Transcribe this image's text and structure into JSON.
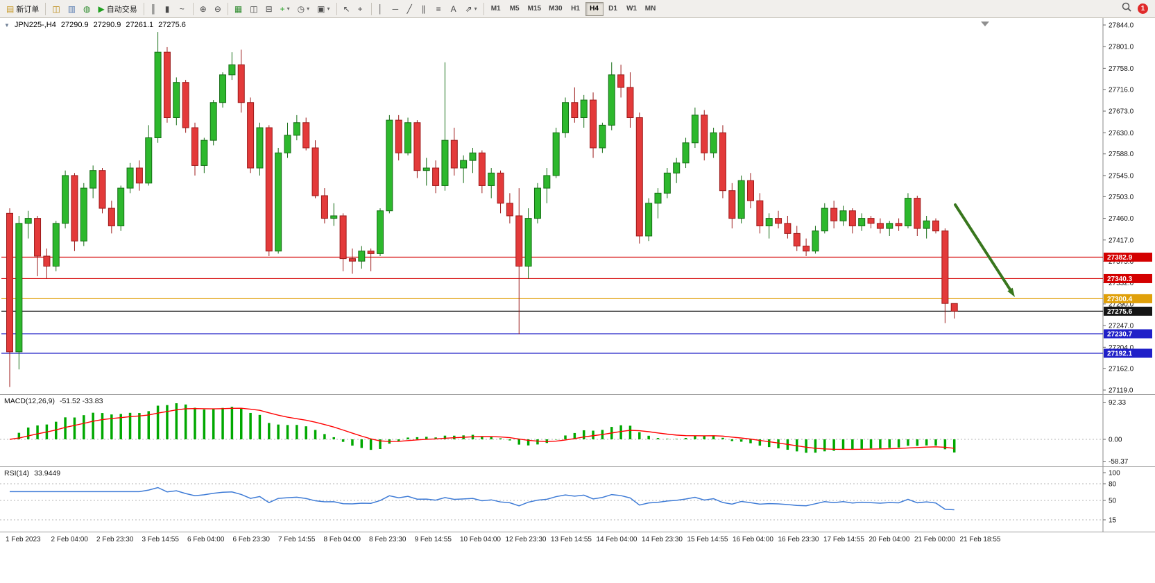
{
  "toolbar": {
    "badge_count": "1",
    "caret_glyph": "▾",
    "active_timeframe": "H4",
    "timeframes": [
      "M1",
      "M5",
      "M15",
      "M30",
      "H1",
      "H4",
      "D1",
      "W1",
      "MN"
    ],
    "items": [
      {
        "name": "new-order-button",
        "label": "新订单",
        "glyph": "▤",
        "icon": "new-order-icon",
        "color": "#c89b2a"
      },
      {
        "sep": true
      },
      {
        "name": "new-chart-button",
        "glyph": "◫",
        "icon": "new-chart-icon",
        "color": "#b8860b"
      },
      {
        "name": "profiles-button",
        "glyph": "▥",
        "icon": "profiles-icon",
        "color": "#5b7db1"
      },
      {
        "name": "market-watch-button",
        "glyph": "◍",
        "icon": "market-watch-icon",
        "color": "#2e8b2e"
      },
      {
        "name": "autotrade-button",
        "label": "自动交易",
        "glyph": "▶",
        "icon": "autotrade-play-icon",
        "color": "#1fa01f"
      },
      {
        "sep": true
      },
      {
        "name": "bar-chart-button",
        "glyph": "║",
        "icon": "bar-chart-icon"
      },
      {
        "name": "candlestick-button",
        "glyph": "▮",
        "icon": "candlestick-icon"
      },
      {
        "name": "line-chart-button",
        "glyph": "~",
        "icon": "line-chart-icon"
      },
      {
        "sep": true
      },
      {
        "name": "zoom-in-button",
        "glyph": "⊕",
        "icon": "zoom-in-icon"
      },
      {
        "name": "zoom-out-button",
        "glyph": "⊖",
        "icon": "zoom-out-icon"
      },
      {
        "sep": true
      },
      {
        "name": "tile-windows-button",
        "glyph": "▦",
        "icon": "tile-windows-icon",
        "color": "#2e8b2e"
      },
      {
        "name": "cascade-windows-button",
        "glyph": "◫",
        "icon": "cascade-windows-icon"
      },
      {
        "name": "arrange-windows-button",
        "glyph": "⊟",
        "icon": "arrange-windows-icon"
      },
      {
        "name": "indicators-button",
        "glyph": "+",
        "icon": "add-indicator-icon",
        "color": "#1fa01f",
        "caret": true
      },
      {
        "name": "periods-button",
        "glyph": "◷",
        "icon": "periods-clock-icon",
        "caret": true
      },
      {
        "name": "templates-button",
        "glyph": "▣",
        "icon": "template-icon",
        "caret": true
      },
      {
        "sep": true
      },
      {
        "name": "cursor-button",
        "glyph": "↖",
        "icon": "cursor-icon"
      },
      {
        "name": "crosshair-button",
        "glyph": "+",
        "icon": "crosshair-icon"
      },
      {
        "sep": true
      },
      {
        "name": "vertical-line-button",
        "glyph": "│",
        "icon": "vertical-line-icon"
      },
      {
        "name": "horizontal-line-button",
        "glyph": "─",
        "icon": "horizontal-line-icon"
      },
      {
        "name": "trendline-button",
        "glyph": "╱",
        "icon": "trendline-icon"
      },
      {
        "name": "channel-button",
        "glyph": "∥",
        "icon": "channel-icon"
      },
      {
        "name": "fibonacci-button",
        "glyph": "≡",
        "icon": "fibonacci-icon"
      },
      {
        "name": "text-tool-button",
        "glyph": "A",
        "icon": "text-tool-icon"
      },
      {
        "name": "arrows-tool-button",
        "glyph": "⇗",
        "icon": "arrows-tool-icon",
        "caret": true
      },
      {
        "sep": true
      }
    ]
  },
  "chart": {
    "header": {
      "arrow_glyph": "▼",
      "symbol": "JPN225-,H4",
      "open": "27290.9",
      "high": "27290.9",
      "low": "27261.1",
      "close": "27275.6"
    },
    "bull_color": "#2db82d",
    "bear_color": "#e33a3a",
    "bull_border": "#156d15",
    "bear_border": "#9c1a1a",
    "arrow_color": "#38761d",
    "price_axis": [
      "27844.0",
      "27801.0",
      "27758.0",
      "27716.0",
      "27673.0",
      "27630.0",
      "27588.0",
      "27545.0",
      "27503.0",
      "27460.0",
      "27417.0",
      "27375.0",
      "27332.0",
      "27290.0",
      "27247.0",
      "27204.0",
      "27162.0",
      "27119.0"
    ],
    "time_axis": [
      "1 Feb 2023",
      "2 Feb 04:00",
      "2 Feb 23:30",
      "3 Feb 14:55",
      "6 Feb 04:00",
      "6 Feb 23:30",
      "7 Feb 14:55",
      "8 Feb 04:00",
      "8 Feb 23:30",
      "9 Feb 14:55",
      "10 Feb 04:00",
      "12 Feb 23:30",
      "13 Feb 14:55",
      "14 Feb 04:00",
      "14 Feb 23:30",
      "15 Feb 14:55",
      "16 Feb 04:00",
      "16 Feb 23:30",
      "17 Feb 14:55",
      "20 Feb 04:00",
      "21 Feb 00:00",
      "21 Feb 18:55"
    ],
    "levels": [
      {
        "name": "resistance-line-upper",
        "price": 27382.9,
        "label": "27382.9",
        "color": "#d40000"
      },
      {
        "name": "resistance-line-lower",
        "price": 27340.3,
        "label": "27340.3",
        "color": "#d40000"
      },
      {
        "name": "pivot-line-orange",
        "price": 27300.4,
        "label": "27300.4",
        "color": "#e0a00a"
      },
      {
        "name": "current-price-line",
        "price": 27275.6,
        "label": "27275.6",
        "color": "#151515"
      },
      {
        "name": "support-line-upper",
        "price": 27230.7,
        "label": "27230.7",
        "color": "#2020c8"
      },
      {
        "name": "support-line-lower",
        "price": 27192.1,
        "label": "27192.1",
        "color": "#2020c8"
      }
    ]
  },
  "chart_data": {
    "type": "candlestick",
    "symbol": "JPN225-",
    "timeframe": "H4",
    "quote": {
      "open": "27290.9",
      "high": "27290.9",
      "low": "27261.1",
      "close": "27275.6"
    },
    "ohlc": [
      [
        27470,
        27480,
        27125,
        27195
      ],
      [
        27195,
        27465,
        27160,
        27450
      ],
      [
        27450,
        27475,
        27420,
        27460
      ],
      [
        27460,
        27465,
        27345,
        27385
      ],
      [
        27385,
        27400,
        27340,
        27365
      ],
      [
        27365,
        27455,
        27355,
        27450
      ],
      [
        27450,
        27555,
        27440,
        27545
      ],
      [
        27545,
        27550,
        27395,
        27415
      ],
      [
        27415,
        27530,
        27405,
        27520
      ],
      [
        27520,
        27565,
        27500,
        27555
      ],
      [
        27555,
        27560,
        27470,
        27480
      ],
      [
        27480,
        27495,
        27430,
        27445
      ],
      [
        27445,
        27525,
        27435,
        27520
      ],
      [
        27520,
        27570,
        27510,
        27560
      ],
      [
        27560,
        27575,
        27515,
        27530
      ],
      [
        27530,
        27645,
        27525,
        27620
      ],
      [
        27620,
        27830,
        27610,
        27790
      ],
      [
        27790,
        27800,
        27650,
        27660
      ],
      [
        27660,
        27740,
        27645,
        27730
      ],
      [
        27730,
        27735,
        27630,
        27640
      ],
      [
        27640,
        27650,
        27545,
        27565
      ],
      [
        27565,
        27620,
        27550,
        27615
      ],
      [
        27615,
        27695,
        27605,
        27690
      ],
      [
        27690,
        27750,
        27680,
        27745
      ],
      [
        27745,
        27790,
        27735,
        27765
      ],
      [
        27765,
        27795,
        27670,
        27690
      ],
      [
        27690,
        27700,
        27550,
        27560
      ],
      [
        27560,
        27650,
        27545,
        27640
      ],
      [
        27640,
        27645,
        27385,
        27395
      ],
      [
        27395,
        27600,
        27390,
        27590
      ],
      [
        27590,
        27650,
        27580,
        27625
      ],
      [
        27625,
        27665,
        27615,
        27650
      ],
      [
        27650,
        27660,
        27595,
        27600
      ],
      [
        27600,
        27615,
        27500,
        27505
      ],
      [
        27505,
        27520,
        27450,
        27460
      ],
      [
        27460,
        27490,
        27445,
        27465
      ],
      [
        27465,
        27470,
        27355,
        27380
      ],
      [
        27380,
        27400,
        27350,
        27375
      ],
      [
        27375,
        27405,
        27360,
        27395
      ],
      [
        27395,
        27400,
        27355,
        27390
      ],
      [
        27390,
        27480,
        27385,
        27475
      ],
      [
        27475,
        27665,
        27470,
        27655
      ],
      [
        27655,
        27665,
        27575,
        27590
      ],
      [
        27590,
        27660,
        27585,
        27650
      ],
      [
        27650,
        27655,
        27540,
        27555
      ],
      [
        27555,
        27580,
        27525,
        27560
      ],
      [
        27560,
        27575,
        27510,
        27525
      ],
      [
        27525,
        27770,
        27515,
        27615
      ],
      [
        27615,
        27640,
        27545,
        27560
      ],
      [
        27560,
        27585,
        27530,
        27575
      ],
      [
        27575,
        27600,
        27550,
        27590
      ],
      [
        27590,
        27595,
        27510,
        27525
      ],
      [
        27525,
        27560,
        27500,
        27550
      ],
      [
        27550,
        27555,
        27470,
        27490
      ],
      [
        27490,
        27510,
        27450,
        27465
      ],
      [
        27465,
        27520,
        27230,
        27365
      ],
      [
        27365,
        27480,
        27340,
        27460
      ],
      [
        27460,
        27530,
        27450,
        27520
      ],
      [
        27520,
        27560,
        27490,
        27545
      ],
      [
        27545,
        27640,
        27540,
        27630
      ],
      [
        27630,
        27700,
        27620,
        27690
      ],
      [
        27690,
        27720,
        27650,
        27660
      ],
      [
        27660,
        27705,
        27640,
        27695
      ],
      [
        27695,
        27710,
        27580,
        27600
      ],
      [
        27600,
        27650,
        27590,
        27645
      ],
      [
        27645,
        27770,
        27635,
        27745
      ],
      [
        27745,
        27765,
        27700,
        27720
      ],
      [
        27720,
        27750,
        27640,
        27660
      ],
      [
        27660,
        27670,
        27410,
        27425
      ],
      [
        27425,
        27500,
        27415,
        27490
      ],
      [
        27490,
        27520,
        27460,
        27510
      ],
      [
        27510,
        27560,
        27500,
        27550
      ],
      [
        27550,
        27580,
        27530,
        27570
      ],
      [
        27570,
        27620,
        27560,
        27610
      ],
      [
        27610,
        27680,
        27600,
        27665
      ],
      [
        27665,
        27675,
        27575,
        27590
      ],
      [
        27590,
        27640,
        27580,
        27630
      ],
      [
        27630,
        27645,
        27500,
        27515
      ],
      [
        27515,
        27530,
        27440,
        27460
      ],
      [
        27460,
        27545,
        27450,
        27535
      ],
      [
        27535,
        27550,
        27480,
        27495
      ],
      [
        27495,
        27510,
        27430,
        27445
      ],
      [
        27445,
        27470,
        27420,
        27460
      ],
      [
        27460,
        27475,
        27440,
        27450
      ],
      [
        27450,
        27465,
        27420,
        27430
      ],
      [
        27430,
        27445,
        27395,
        27405
      ],
      [
        27405,
        27420,
        27385,
        27395
      ],
      [
        27395,
        27445,
        27390,
        27435
      ],
      [
        27435,
        27490,
        27430,
        27480
      ],
      [
        27480,
        27495,
        27440,
        27455
      ],
      [
        27455,
        27485,
        27445,
        27475
      ],
      [
        27475,
        27480,
        27430,
        27445
      ],
      [
        27445,
        27470,
        27435,
        27460
      ],
      [
        27460,
        27465,
        27440,
        27450
      ],
      [
        27450,
        27460,
        27430,
        27440
      ],
      [
        27440,
        27455,
        27425,
        27450
      ],
      [
        27450,
        27460,
        27435,
        27445
      ],
      [
        27445,
        27510,
        27440,
        27500
      ],
      [
        27500,
        27505,
        27425,
        27440
      ],
      [
        27440,
        27465,
        27420,
        27455
      ],
      [
        27455,
        27460,
        27430,
        27435
      ],
      [
        27435,
        27440,
        27252,
        27291
      ],
      [
        27290.9,
        27290.9,
        27261.1,
        27275.6
      ]
    ]
  },
  "macd": {
    "label": "MACD(12,26,9)",
    "values_text": "-51.52 -33.83",
    "axis": [
      "92.33",
      "0.00",
      "-58.37"
    ],
    "hist_color": "#00a800",
    "signal_color": "#ff0000"
  },
  "rsi": {
    "label": "RSI(14)",
    "value_text": "33.9449",
    "period": 14,
    "axis": [
      "100",
      "80",
      "50",
      "15"
    ],
    "levels": [
      80,
      50,
      15
    ],
    "color": "#3e7bd6"
  }
}
